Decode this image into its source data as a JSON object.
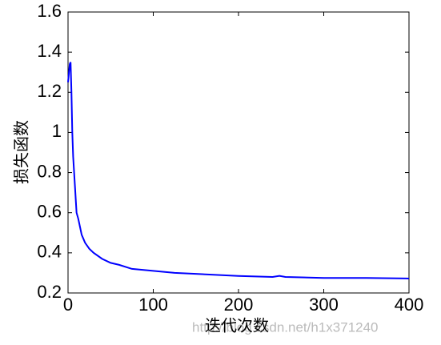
{
  "chart_data": {
    "type": "line",
    "x_label": "迭代次数",
    "y_label": "损失函数",
    "watermark": "http://blog.csdn.net/h1x371240",
    "x": [
      0,
      2,
      3,
      4,
      5,
      6,
      8,
      10,
      12,
      14,
      16,
      20,
      25,
      30,
      40,
      50,
      60,
      75,
      100,
      125,
      150,
      200,
      240,
      248,
      255,
      300,
      350,
      400
    ],
    "series": [
      {
        "name": "loss",
        "color": "#0000ff",
        "values": [
          1.25,
          1.34,
          1.35,
          1.2,
          1.0,
          0.88,
          0.74,
          0.6,
          0.57,
          0.53,
          0.49,
          0.45,
          0.42,
          0.4,
          0.37,
          0.35,
          0.34,
          0.32,
          0.31,
          0.3,
          0.295,
          0.285,
          0.28,
          0.285,
          0.28,
          0.275,
          0.275,
          0.272
        ]
      }
    ],
    "xlim": [
      0,
      400
    ],
    "ylim": [
      0.2,
      1.6
    ],
    "xticks": [
      0,
      100,
      200,
      300,
      400
    ],
    "yticks": [
      0.2,
      0.4,
      0.6,
      0.8,
      1,
      1.2,
      1.4,
      1.6
    ]
  }
}
